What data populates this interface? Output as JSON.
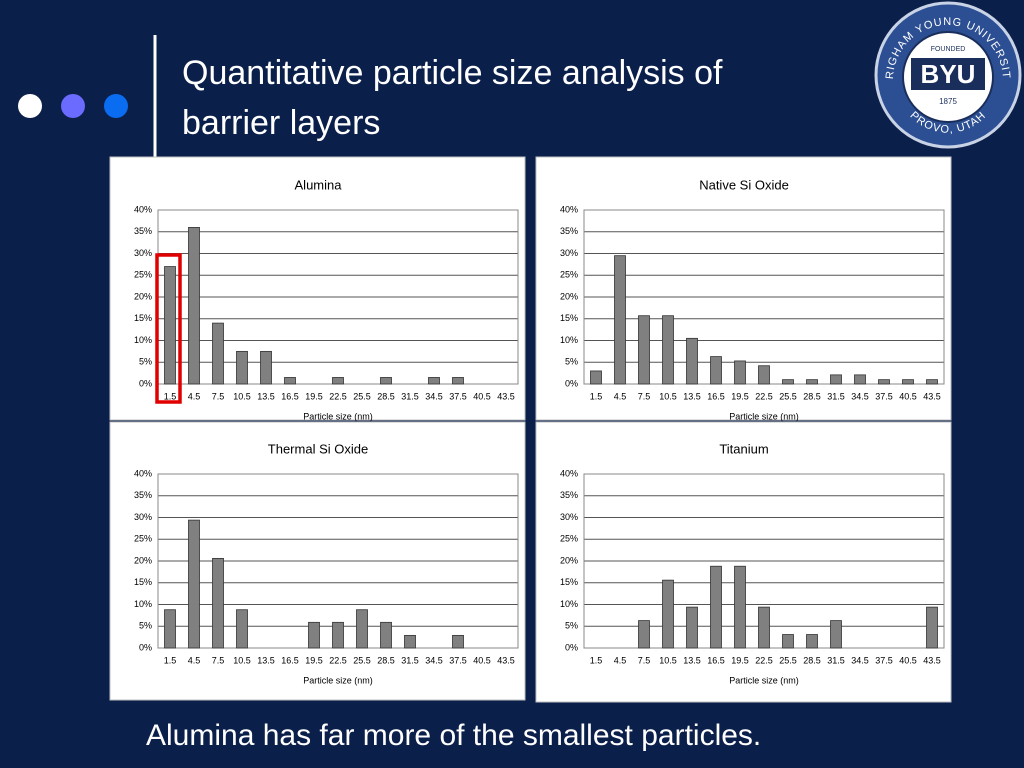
{
  "slide": {
    "title_lines": [
      "Quantitative particle size analysis of",
      "barrier layers"
    ],
    "caption": "Alumina has far more of the smallest particles."
  },
  "logo": {
    "arc_top": "BRIGHAM YOUNG UNIVERSITY",
    "founded": "FOUNDED",
    "name": "BYU",
    "year": "1875",
    "arc_bottom": "PROVO, UTAH"
  },
  "chart_data": [
    {
      "type": "bar",
      "title": "Alumina",
      "xlabel": "Particle size (nm)",
      "color": "#808080",
      "grid": true,
      "categories": [
        "1.5",
        "4.5",
        "7.5",
        "10.5",
        "13.5",
        "16.5",
        "19.5",
        "22.5",
        "25.5",
        "28.5",
        "31.5",
        "34.5",
        "37.5",
        "40.5",
        "43.5"
      ],
      "values": [
        27,
        36,
        14,
        7.5,
        7.5,
        1.5,
        0,
        1.5,
        0,
        1.5,
        0,
        1.5,
        1.5,
        0,
        0
      ],
      "ylim": [
        0,
        40
      ],
      "yticks": [
        {
          "value": 0,
          "label": "0%"
        },
        {
          "value": 5,
          "label": "5%"
        },
        {
          "value": 10,
          "label": "10%"
        },
        {
          "value": 15,
          "label": "15%"
        },
        {
          "value": 20,
          "label": "20%"
        },
        {
          "value": 25,
          "label": "25%"
        },
        {
          "value": 30,
          "label": "30%"
        },
        {
          "value": 35,
          "label": "35%"
        },
        {
          "value": 40,
          "label": "40%"
        }
      ]
    },
    {
      "type": "bar",
      "title": "Native Si Oxide",
      "xlabel": "Particle size (nm)",
      "color": "#808080",
      "grid": true,
      "categories": [
        "1.5",
        "4.5",
        "7.5",
        "10.5",
        "13.5",
        "16.5",
        "19.5",
        "22.5",
        "25.5",
        "28.5",
        "31.5",
        "34.5",
        "37.5",
        "40.5",
        "43.5"
      ],
      "values": [
        3,
        29.5,
        15.7,
        15.7,
        10.5,
        6.3,
        5.3,
        4.2,
        1,
        1,
        2.1,
        2.1,
        1,
        1,
        1
      ],
      "ylim": [
        0,
        40
      ],
      "yticks": [
        {
          "value": 0,
          "label": "0%"
        },
        {
          "value": 5,
          "label": "5%"
        },
        {
          "value": 10,
          "label": "10%"
        },
        {
          "value": 15,
          "label": "15%"
        },
        {
          "value": 20,
          "label": "20%"
        },
        {
          "value": 25,
          "label": "25%"
        },
        {
          "value": 30,
          "label": "30%"
        },
        {
          "value": 35,
          "label": "35%"
        },
        {
          "value": 40,
          "label": "40%"
        }
      ]
    },
    {
      "type": "bar",
      "title": "Thermal Si Oxide",
      "xlabel": "Particle size (nm)",
      "color": "#808080",
      "grid": true,
      "categories": [
        "1.5",
        "4.5",
        "7.5",
        "10.5",
        "13.5",
        "16.5",
        "19.5",
        "22.5",
        "25.5",
        "28.5",
        "31.5",
        "34.5",
        "37.5",
        "40.5",
        "43.5"
      ],
      "values": [
        8.8,
        29.4,
        20.6,
        8.8,
        0,
        0,
        5.9,
        5.9,
        8.8,
        5.9,
        2.9,
        0,
        2.9,
        0,
        0
      ],
      "ylim": [
        0,
        40
      ],
      "yticks": [
        {
          "value": 0,
          "label": "0%"
        },
        {
          "value": 5,
          "label": "5%"
        },
        {
          "value": 10,
          "label": "10%"
        },
        {
          "value": 15,
          "label": "15%"
        },
        {
          "value": 20,
          "label": "20%"
        },
        {
          "value": 25,
          "label": "25%"
        },
        {
          "value": 30,
          "label": "30%"
        },
        {
          "value": 35,
          "label": "35%"
        },
        {
          "value": 40,
          "label": "40%"
        }
      ]
    },
    {
      "type": "bar",
      "title": "Titanium",
      "xlabel": "Particle size (nm)",
      "color": "#808080",
      "grid": true,
      "categories": [
        "1.5",
        "4.5",
        "7.5",
        "10.5",
        "13.5",
        "16.5",
        "19.5",
        "22.5",
        "25.5",
        "28.5",
        "31.5",
        "34.5",
        "37.5",
        "40.5",
        "43.5"
      ],
      "values": [
        0,
        0,
        6.3,
        15.6,
        9.4,
        18.8,
        18.8,
        9.4,
        3.1,
        3.1,
        6.3,
        0,
        0,
        0,
        9.4
      ],
      "ylim": [
        0,
        40
      ],
      "yticks": [
        {
          "value": 0,
          "label": "0%"
        },
        {
          "value": 5,
          "label": "5%"
        },
        {
          "value": 10,
          "label": "10%"
        },
        {
          "value": 15,
          "label": "15%"
        },
        {
          "value": 20,
          "label": "20%"
        },
        {
          "value": 25,
          "label": "25%"
        },
        {
          "value": 30,
          "label": "30%"
        },
        {
          "value": 35,
          "label": "35%"
        },
        {
          "value": 40,
          "label": "40%"
        }
      ]
    }
  ]
}
